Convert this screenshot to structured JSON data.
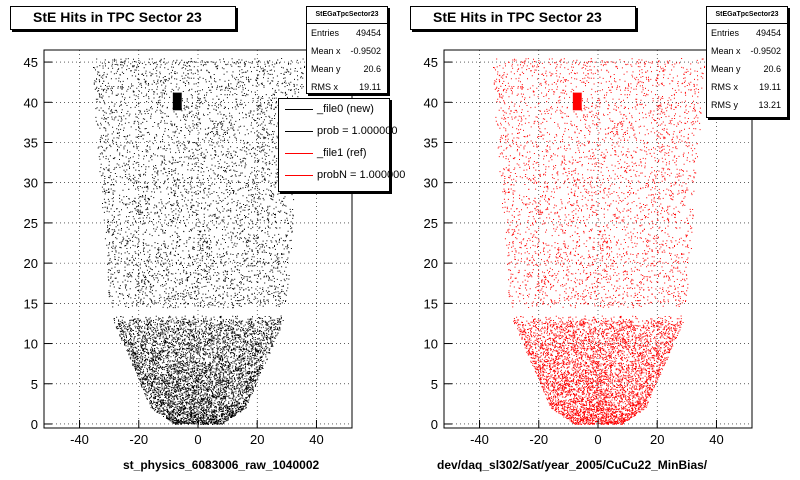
{
  "chart_data": [
    {
      "type": "scatter",
      "title": "StE Hits in TPC Sector 23",
      "xlabel": "st_physics_6083006_raw_1040002",
      "ylabel": "",
      "xlim": [
        -52,
        52
      ],
      "ylim": [
        -0.5,
        46.5
      ],
      "xticks": [
        -40,
        -20,
        0,
        20,
        40
      ],
      "yticks": [
        0,
        5,
        10,
        15,
        20,
        25,
        30,
        35,
        40,
        45
      ],
      "grid": true,
      "marker_color": "#000000",
      "stats": {
        "header": "StEGaTpcSector23",
        "rows": [
          {
            "key": "Entries",
            "value": "49454"
          },
          {
            "key": "Mean x",
            "value": "-0.9502"
          },
          {
            "key": "Mean y",
            "value": "20.6"
          },
          {
            "key": "RMS x",
            "value": "19.11"
          }
        ]
      },
      "legend": [
        {
          "label": "_file0 (new)",
          "color": "#000000"
        },
        {
          "label": "prob = 1.000000",
          "color": "#000000"
        },
        {
          "label": "_file1 (ref)",
          "color": "#ff0000"
        },
        {
          "label": "probN = 1.000000",
          "color": "#ff0000"
        }
      ]
    },
    {
      "type": "scatter",
      "title": "StE Hits in TPC Sector 23",
      "xlabel": "dev/daq_sl302/Sat/year_2005/CuCu22_MinBias/",
      "ylabel": "",
      "xlim": [
        -52,
        52
      ],
      "ylim": [
        -0.5,
        46.5
      ],
      "xticks": [
        -40,
        -20,
        0,
        20,
        40
      ],
      "yticks": [
        0,
        5,
        10,
        15,
        20,
        25,
        30,
        35,
        40,
        45
      ],
      "grid": true,
      "marker_color": "#ff0000",
      "stats": {
        "header": "StEGaTpcSector23",
        "rows": [
          {
            "key": "Entries",
            "value": "49454"
          },
          {
            "key": "Mean x",
            "value": "-0.9502"
          },
          {
            "key": "Mean y",
            "value": "20.6"
          },
          {
            "key": "RMS x",
            "value": "19.11"
          },
          {
            "key": "RMS y",
            "value": "13.21"
          }
        ]
      }
    }
  ]
}
